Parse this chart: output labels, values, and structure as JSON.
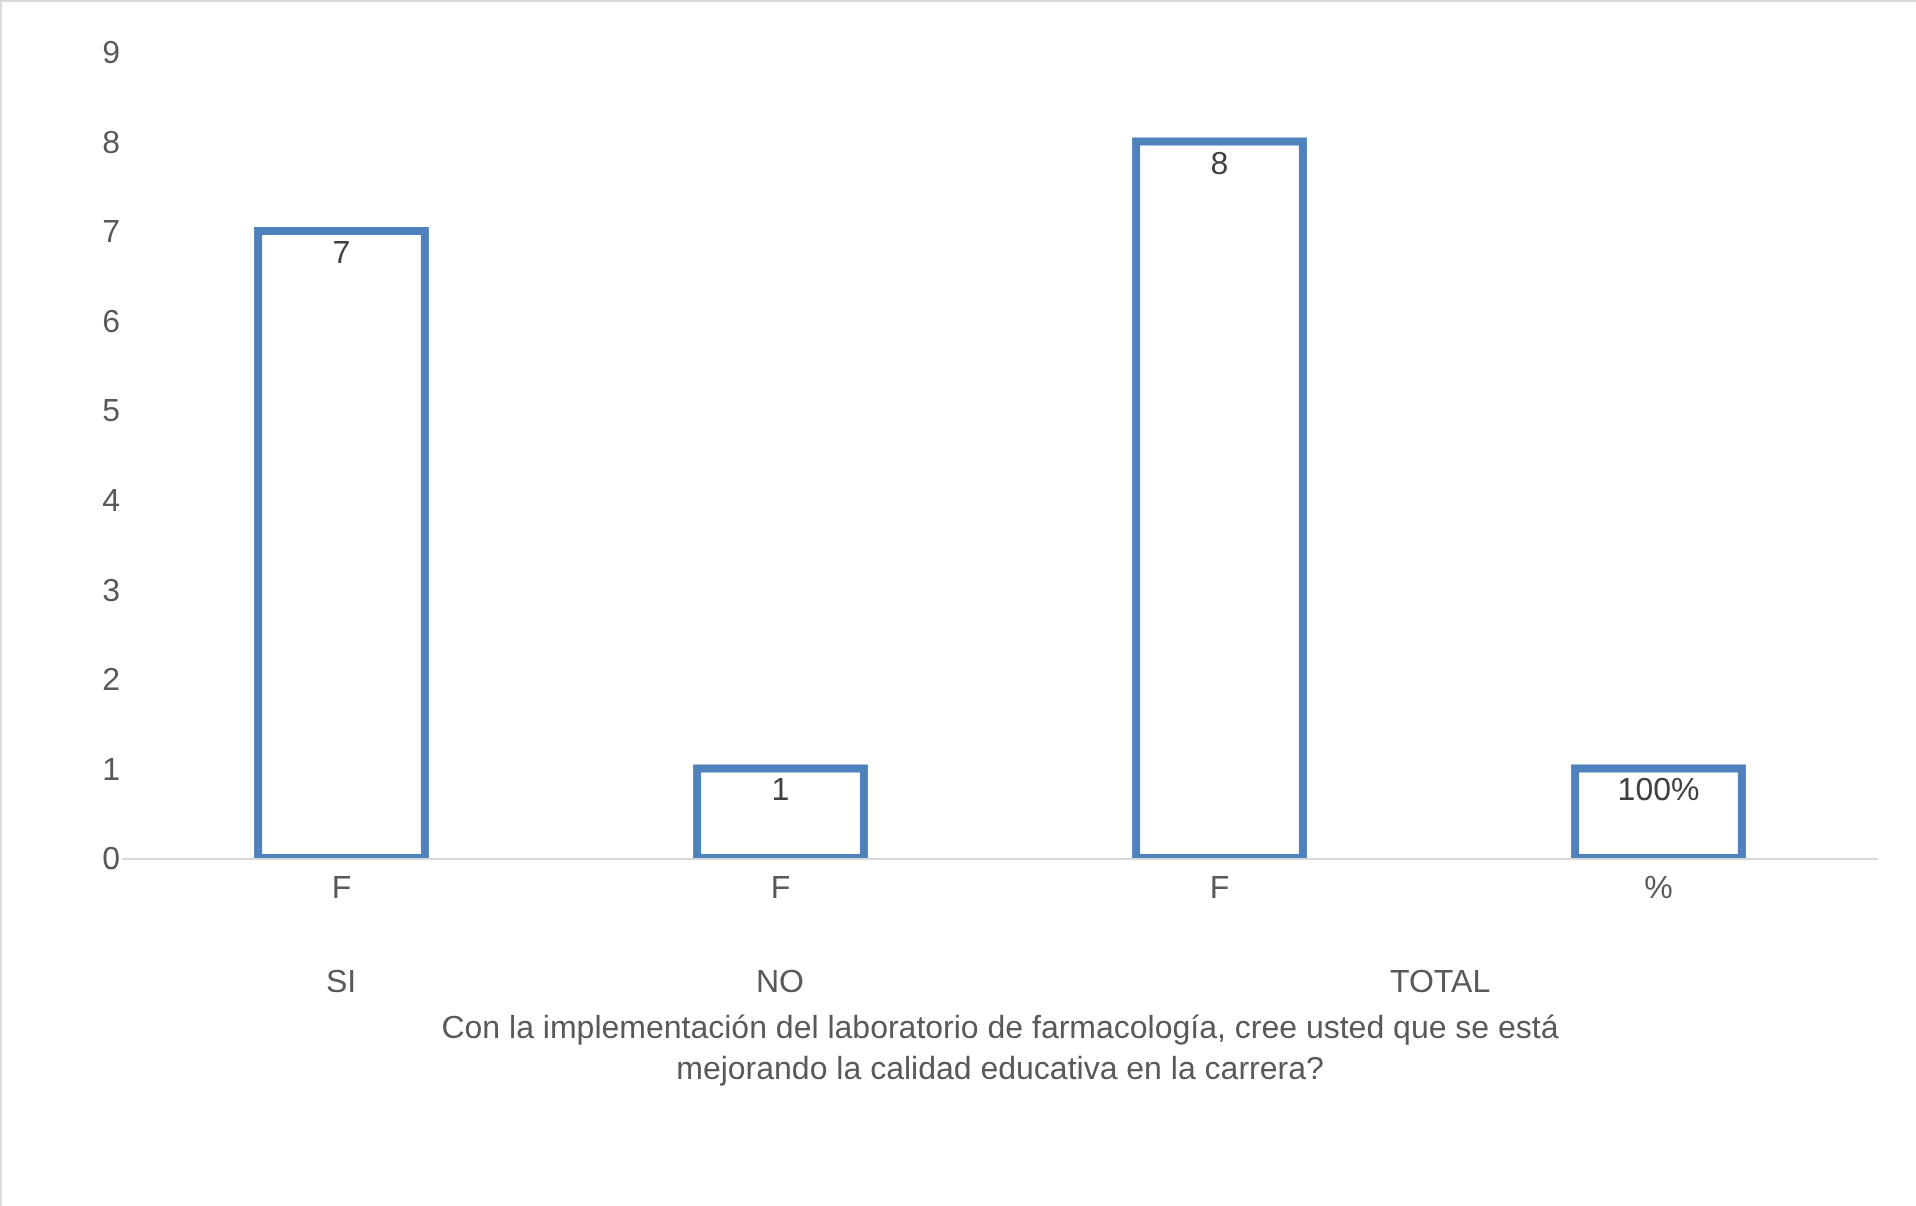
{
  "chart_data": {
    "type": "bar",
    "xlabel": "Con la implementación del laboratorio de farmacología, cree usted que se está mejorando la calidad educativa en la carrera?",
    "categories": [
      "F",
      "F",
      "F",
      "%"
    ],
    "values": [
      7,
      1,
      8,
      1
    ],
    "value_labels": [
      "7",
      "1",
      "8",
      "100%"
    ],
    "color": "#4f81bd",
    "ylim": [
      0,
      9
    ],
    "yticks": [
      0,
      1,
      2,
      3,
      4,
      5,
      6,
      7,
      8,
      9
    ],
    "grid": false,
    "legend": false,
    "annotations": [
      "SI",
      "NO",
      "TOTAL"
    ]
  }
}
